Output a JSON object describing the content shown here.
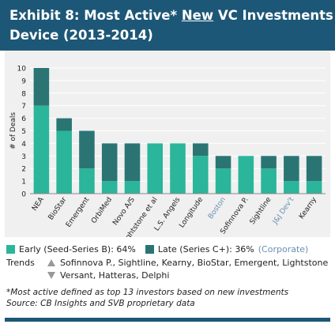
{
  "header": {
    "title_part1": "Exhibit 8: Most Active* ",
    "title_underlined": "New",
    "title_part2": " VC Investments in",
    "title_line2": "Device (2013-2014)"
  },
  "colors": {
    "header": "#1d5777",
    "early": "#2bb59a",
    "late": "#2a7574",
    "corporate_label": "#6a8fb3",
    "chart_bg": "#f0f0f0"
  },
  "chart_data": {
    "type": "bar",
    "stacked": true,
    "ylabel": "# of Deals",
    "ylim": [
      0,
      10
    ],
    "yticks": [
      0,
      1,
      2,
      3,
      4,
      5,
      6,
      7,
      8,
      9,
      10
    ],
    "grid": true,
    "categories": [
      "NEA",
      "BioStar",
      "Emergent",
      "OrbiMed",
      "Novo A/S",
      "Lightstone et al",
      "L.S. Angels",
      "Longitude",
      "Boston",
      "Sofinnova P.",
      "Sightline",
      "J&J Dev't",
      "Kearny"
    ],
    "corporate_categories": [
      "Boston",
      "J&J Dev't"
    ],
    "series": [
      {
        "name": "Early (Seed-Series B): 64%",
        "values": [
          7,
          5,
          2,
          1,
          1,
          4,
          4,
          3,
          2,
          3,
          2,
          1,
          1
        ]
      },
      {
        "name": "Late (Series C+): 36%",
        "values": [
          3,
          1,
          3,
          3,
          3,
          0,
          0,
          1,
          1,
          0,
          1,
          2,
          2
        ]
      }
    ]
  },
  "legend": {
    "early": "Early (Seed-Series B): 64%",
    "late": "Late (Series C+): 36%",
    "corporate": "(Corporate)"
  },
  "trends": {
    "label": "Trends",
    "up": "Sofinnova P., Sightline, Kearny, BioStar, Emergent, Lightstone",
    "down": "Versant, Hatteras, Delphi"
  },
  "footnote": {
    "line1": "*Most active defined as top 13 investors based on new investments",
    "line2": "Source: CB Insights and SVB proprietary data"
  }
}
